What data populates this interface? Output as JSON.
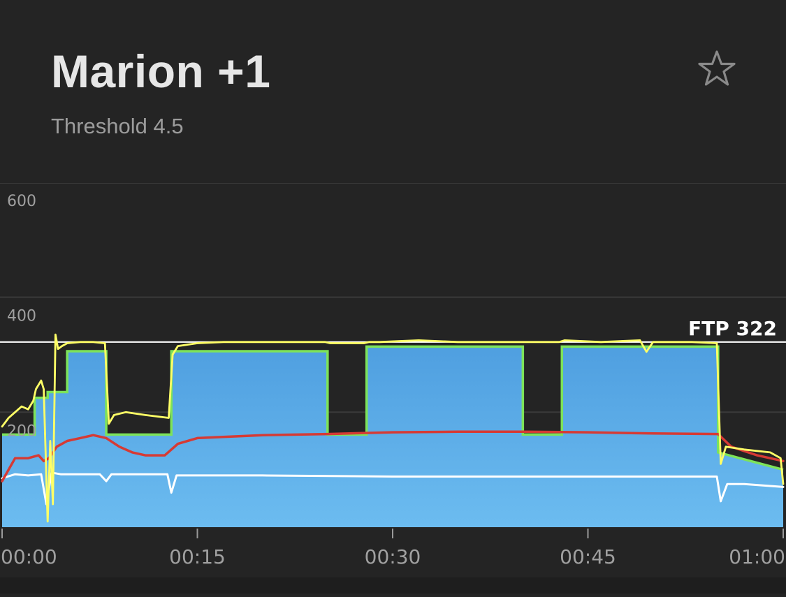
{
  "header": {
    "title": "Marion +1",
    "subtitle": "Threshold 4.5"
  },
  "icons": {
    "favorite": "star-outline-icon"
  },
  "colors": {
    "background": "#242424",
    "target_fill_top": "#4f9fe0",
    "target_fill_bottom": "#6cbcf0",
    "target_outline": "#7de35a",
    "power": "#ffff66",
    "heart_rate": "#d63a34",
    "cadence": "#ffffff",
    "ftp_line": "#ffffff",
    "grid": "#3a3a3a"
  },
  "chart_data": {
    "type": "area",
    "x_unit": "minutes",
    "xlim": [
      0,
      60
    ],
    "ylim": [
      0,
      650
    ],
    "y_ticks": [
      "600",
      "400",
      "200"
    ],
    "x_ticks": [
      "00:00",
      "00:15",
      "00:30",
      "00:45",
      "01:00"
    ],
    "ftp": {
      "label": "FTP 322",
      "value": 322
    },
    "target_power": {
      "segments": [
        {
          "start": 0.0,
          "end": 2.5,
          "watts": 161
        },
        {
          "start": 2.5,
          "end": 3.5,
          "watts": 225
        },
        {
          "start": 3.5,
          "end": 5.0,
          "watts": 235
        },
        {
          "start": 5.0,
          "end": 8.0,
          "watts": 306
        },
        {
          "start": 8.0,
          "end": 13.0,
          "watts": 161
        },
        {
          "start": 13.0,
          "end": 25.0,
          "watts": 306
        },
        {
          "start": 25.0,
          "end": 28.0,
          "watts": 161
        },
        {
          "start": 28.0,
          "end": 40.0,
          "watts": 314
        },
        {
          "start": 40.0,
          "end": 43.0,
          "watts": 161
        },
        {
          "start": 43.0,
          "end": 55.0,
          "watts": 314
        }
      ],
      "cooldown": {
        "start": 55.0,
        "end": 60.0,
        "from_watts": 130,
        "to_watts": 100
      }
    },
    "power": {
      "x": [
        0,
        0.5,
        1,
        1.5,
        2,
        2.4,
        2.6,
        3,
        3.2,
        3.5,
        3.7,
        3.9,
        4.1,
        4.3,
        4.6,
        5,
        6,
        7,
        7.9,
        8.2,
        8.6,
        9.5,
        11,
        12.8,
        13.1,
        13.5,
        15,
        17,
        20,
        23,
        24.8,
        25.2,
        27.8,
        28.2,
        29,
        32,
        35,
        38,
        39.9,
        40.2,
        42.8,
        43.2,
        46,
        49,
        49.5,
        50,
        53,
        54.9,
        55.2,
        55.6,
        57,
        59,
        59.8,
        60
      ],
      "y": [
        175,
        190,
        200,
        210,
        205,
        220,
        240,
        255,
        240,
        10,
        150,
        40,
        335,
        310,
        315,
        320,
        322,
        322,
        320,
        180,
        195,
        200,
        195,
        190,
        300,
        315,
        320,
        322,
        322,
        322,
        322,
        320,
        320,
        322,
        322,
        325,
        322,
        322,
        322,
        322,
        322,
        325,
        322,
        325,
        305,
        322,
        322,
        320,
        110,
        140,
        135,
        130,
        120,
        75
      ]
    },
    "heart_rate": {
      "x": [
        0,
        1,
        2,
        2.8,
        3.2,
        3.6,
        4.2,
        5,
        6,
        7,
        8,
        9,
        10,
        11,
        12.5,
        13.5,
        15,
        20,
        25,
        30,
        35,
        40,
        45,
        50,
        55,
        56,
        58,
        60
      ],
      "y": [
        80,
        120,
        120,
        125,
        115,
        120,
        140,
        150,
        155,
        160,
        155,
        140,
        130,
        125,
        125,
        145,
        155,
        160,
        162,
        165,
        166,
        166,
        165,
        163,
        162,
        140,
        125,
        115
      ]
    },
    "cadence": {
      "x": [
        0,
        1,
        2,
        3,
        3.4,
        3.8,
        4.5,
        7.5,
        8,
        8.4,
        12.7,
        13,
        13.4,
        20,
        30,
        40,
        50,
        54.9,
        55.2,
        55.7,
        57,
        60
      ],
      "y": [
        85,
        92,
        90,
        92,
        40,
        95,
        92,
        92,
        80,
        92,
        92,
        60,
        90,
        90,
        88,
        88,
        88,
        88,
        45,
        75,
        75,
        70
      ]
    }
  }
}
